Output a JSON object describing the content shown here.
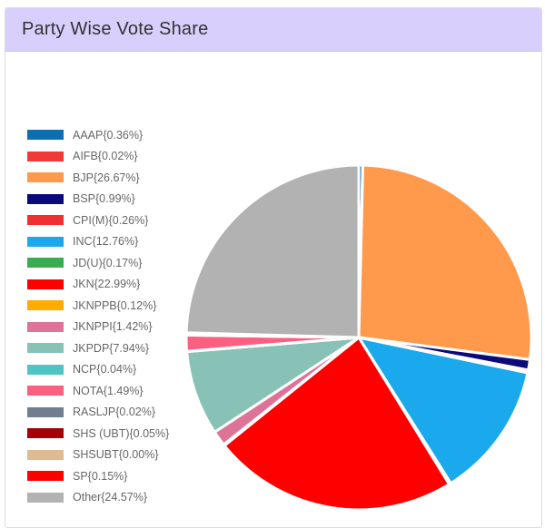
{
  "header": {
    "title": "Party Wise Vote Share"
  },
  "chart_data": {
    "type": "pie",
    "legend_position": "left",
    "slices": [
      {
        "label": "AAAP{0.36%}",
        "name": "AAAP",
        "value": 0.36,
        "color": "#0d6fb0"
      },
      {
        "label": "AIFB{0.02%}",
        "name": "AIFB",
        "value": 0.02,
        "color": "#f03a3a"
      },
      {
        "label": "BJP{26.67%}",
        "name": "BJP",
        "value": 26.67,
        "color": "#ff9a4d"
      },
      {
        "label": "BSP{0.99%}",
        "name": "BSP",
        "value": 0.99,
        "color": "#0b0a7a"
      },
      {
        "label": "CPI(M){0.26%}",
        "name": "CPI(M)",
        "value": 0.26,
        "color": "#f03030"
      },
      {
        "label": "INC{12.76%}",
        "name": "INC",
        "value": 12.76,
        "color": "#1aa9ec"
      },
      {
        "label": "JD(U){0.17%}",
        "name": "JD(U)",
        "value": 0.17,
        "color": "#3bab52"
      },
      {
        "label": "JKN{22.99%}",
        "name": "JKN",
        "value": 22.99,
        "color": "#ff0000"
      },
      {
        "label": "JKNPPB{0.12%}",
        "name": "JKNPPB",
        "value": 0.12,
        "color": "#ffab00"
      },
      {
        "label": "JKNPPI{1.42%}",
        "name": "JKNPPI",
        "value": 1.42,
        "color": "#dd7396"
      },
      {
        "label": "JKPDP{7.94%}",
        "name": "JKPDP",
        "value": 7.94,
        "color": "#88c2b6"
      },
      {
        "label": "NCP{0.04%}",
        "name": "NCP",
        "value": 0.04,
        "color": "#4ec4c5"
      },
      {
        "label": "NOTA{1.49%}",
        "name": "NOTA",
        "value": 1.49,
        "color": "#fb6080"
      },
      {
        "label": "RASLJP{0.02%}",
        "name": "RASLJP",
        "value": 0.02,
        "color": "#6f7f8e"
      },
      {
        "label": "SHS (UBT){0.05%}",
        "name": "SHS (UBT)",
        "value": 0.05,
        "color": "#a30008"
      },
      {
        "label": "SHSUBT{0.00%}",
        "name": "SHSUBT",
        "value": 0.0,
        "color": "#dcbc90"
      },
      {
        "label": "SP{0.15%}",
        "name": "SP",
        "value": 0.15,
        "color": "#ff0000"
      },
      {
        "label": "Other{24.57%}",
        "name": "Other",
        "value": 24.57,
        "color": "#b2b2b2"
      }
    ]
  }
}
